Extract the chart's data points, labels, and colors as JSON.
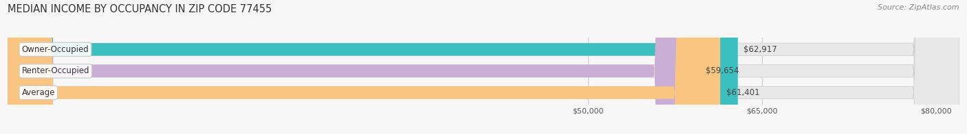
{
  "title": "MEDIAN INCOME BY OCCUPANCY IN ZIP CODE 77455",
  "source": "Source: ZipAtlas.com",
  "categories": [
    "Owner-Occupied",
    "Renter-Occupied",
    "Average"
  ],
  "values": [
    62917,
    59654,
    61401
  ],
  "bar_colors": [
    "#3bbfbf",
    "#c9aed6",
    "#f9c580"
  ],
  "bar_background_color": "#e8e8e8",
  "value_labels": [
    "$62,917",
    "$59,654",
    "$61,401"
  ],
  "xlim": [
    0,
    82000
  ],
  "xticks": [
    50000,
    65000,
    80000
  ],
  "xtick_labels": [
    "$50,000",
    "$65,000",
    "$80,000"
  ],
  "bar_height": 0.58,
  "background_color": "#f7f7f7",
  "title_fontsize": 10.5,
  "label_fontsize": 8.5,
  "tick_fontsize": 8.0,
  "source_fontsize": 8.0
}
